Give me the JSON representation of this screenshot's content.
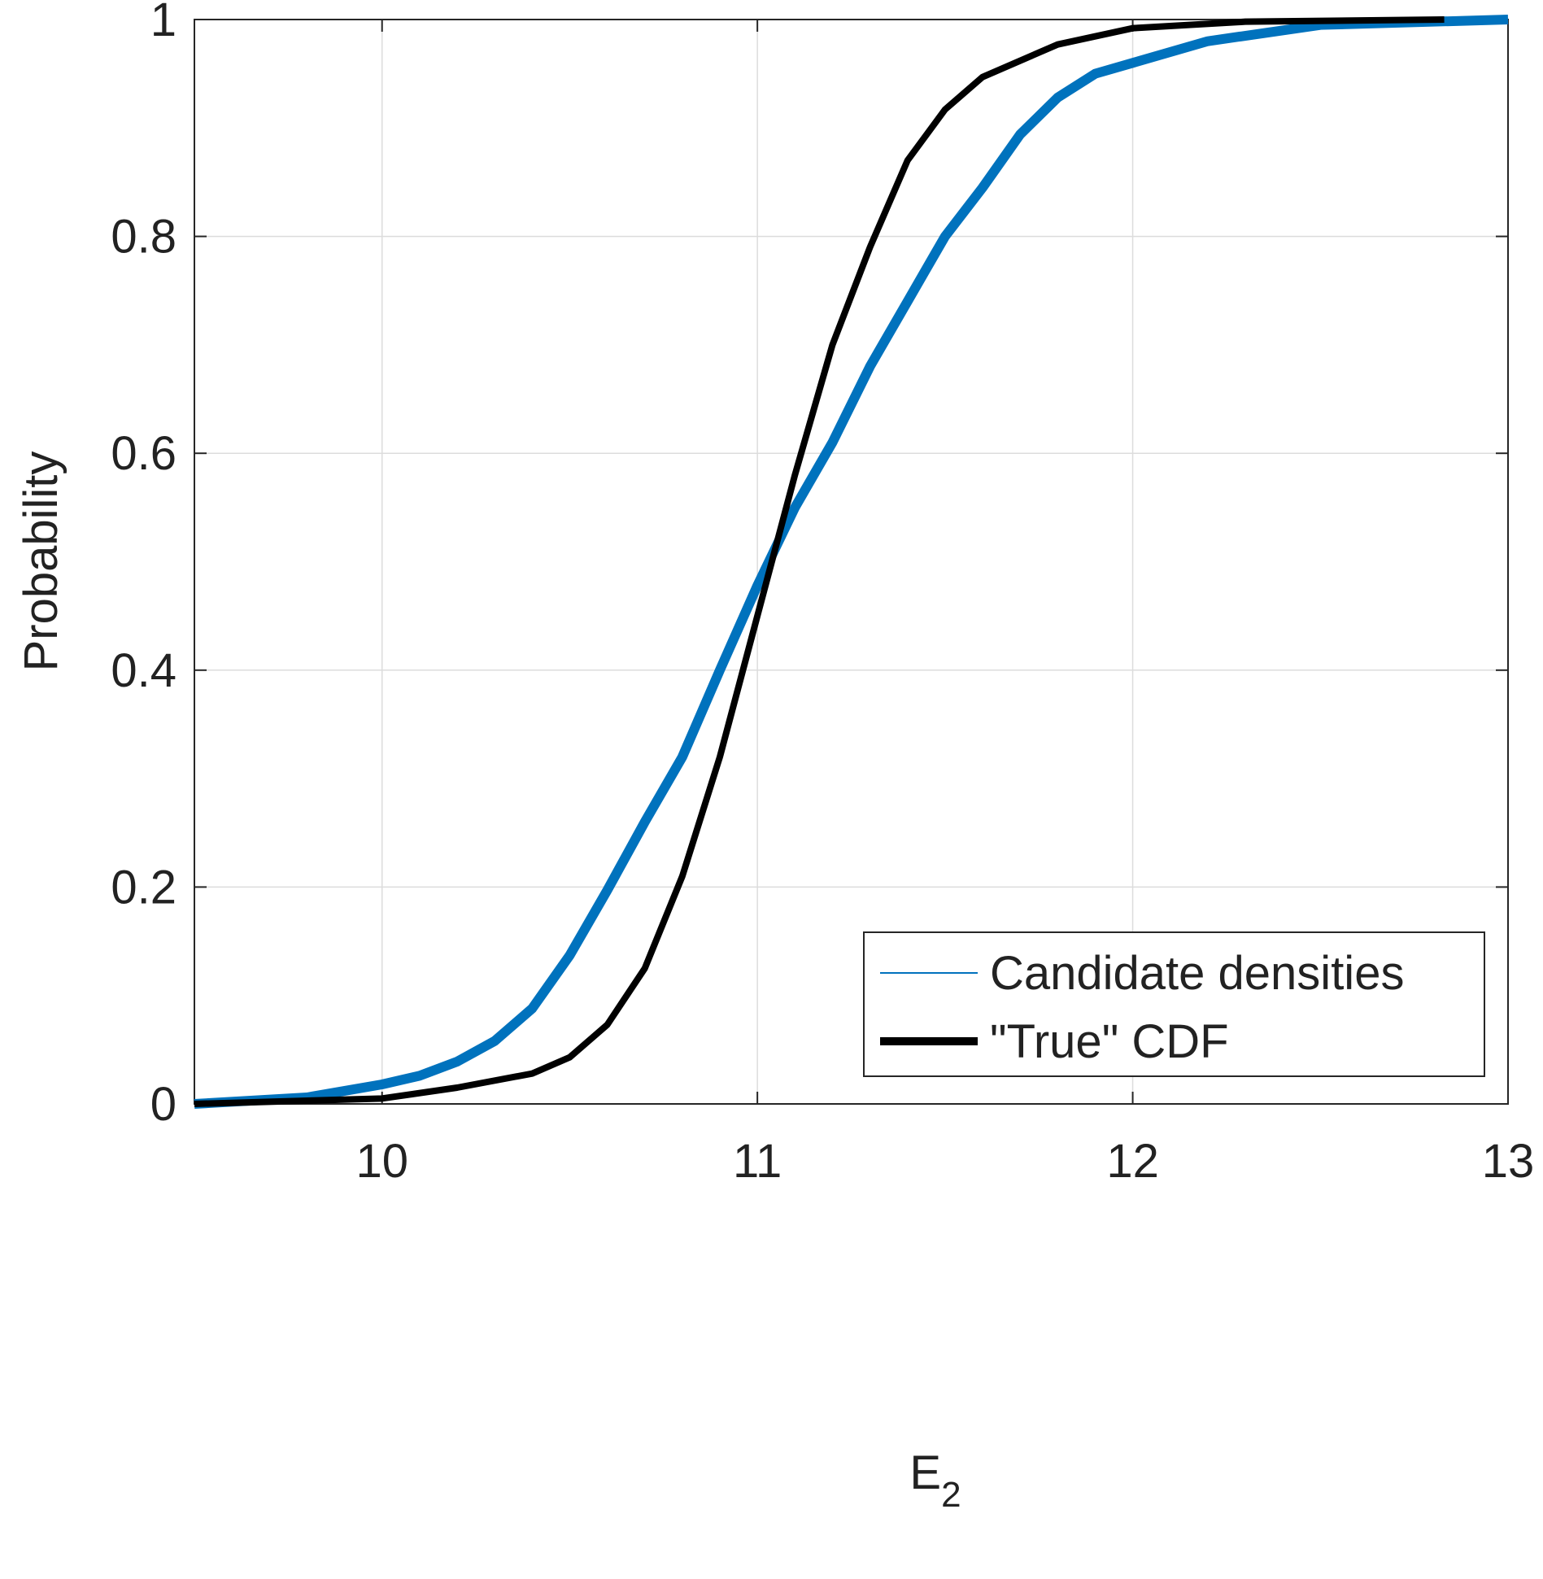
{
  "chart_data": {
    "type": "line",
    "xlabel": {
      "text": "E",
      "subscript": "2"
    },
    "ylabel": "Probability",
    "xlim": [
      9.5,
      13
    ],
    "xticks": [
      10,
      11,
      12,
      13
    ],
    "ylim": [
      0,
      1
    ],
    "yticks": [
      0,
      0.2,
      0.4,
      0.6,
      0.8,
      1
    ],
    "grid": true,
    "legend": "lower right",
    "series": [
      {
        "name": "Candidate densities",
        "color": "#0072bd",
        "x": [
          9.5,
          9.8,
          10.0,
          10.1,
          10.2,
          10.3,
          10.4,
          10.5,
          10.6,
          10.7,
          10.8,
          10.9,
          11.0,
          11.1,
          11.2,
          11.3,
          11.4,
          11.5,
          11.6,
          11.7,
          11.8,
          11.9,
          12.0,
          12.2,
          12.5,
          13
        ],
        "values": [
          0,
          0.006,
          0.018,
          0.026,
          0.039,
          0.058,
          0.088,
          0.137,
          0.197,
          0.26,
          0.32,
          0.4,
          0.478,
          0.55,
          0.61,
          0.68,
          0.74,
          0.8,
          0.845,
          0.894,
          0.928,
          0.95,
          0.96,
          0.98,
          0.995,
          1
        ]
      },
      {
        "name": "\"True\" CDF",
        "color": "#000000",
        "x": [
          9.5,
          10.0,
          10.2,
          10.4,
          10.5,
          10.6,
          10.7,
          10.8,
          10.9,
          11.0,
          11.1,
          11.2,
          11.3,
          11.4,
          11.5,
          11.6,
          11.8,
          12.0,
          12.3,
          12.83
        ],
        "values": [
          0,
          0.005,
          0.015,
          0.028,
          0.043,
          0.073,
          0.125,
          0.21,
          0.32,
          0.45,
          0.58,
          0.7,
          0.79,
          0.87,
          0.917,
          0.947,
          0.977,
          0.992,
          0.998,
          1
        ]
      }
    ]
  }
}
